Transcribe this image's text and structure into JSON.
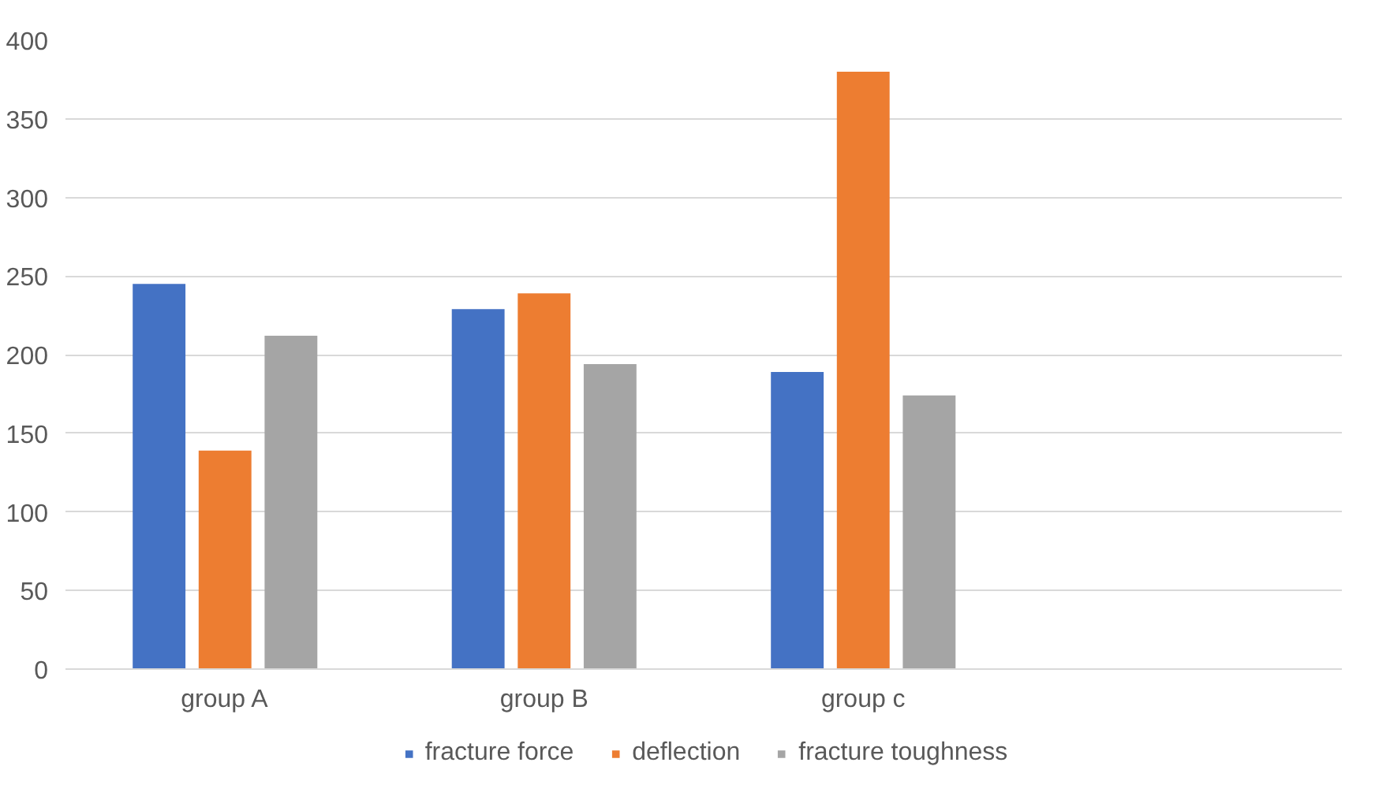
{
  "chart_data": {
    "type": "bar",
    "categories": [
      "group A",
      "group B",
      "group c",
      null
    ],
    "series": [
      {
        "name": "fracture force",
        "color": "#4472c4",
        "values": [
          245,
          229,
          189,
          null
        ]
      },
      {
        "name": "deflection",
        "color": "#ed7d31",
        "values": [
          139,
          239,
          380,
          null
        ]
      },
      {
        "name": "fracture toughness",
        "color": "#a5a5a5",
        "values": [
          212,
          194,
          174,
          null
        ]
      }
    ],
    "ylim": [
      0,
      400
    ],
    "yticks": [
      0,
      50,
      100,
      150,
      200,
      250,
      300,
      350,
      400
    ],
    "grid": "y",
    "legend": "bottom"
  }
}
